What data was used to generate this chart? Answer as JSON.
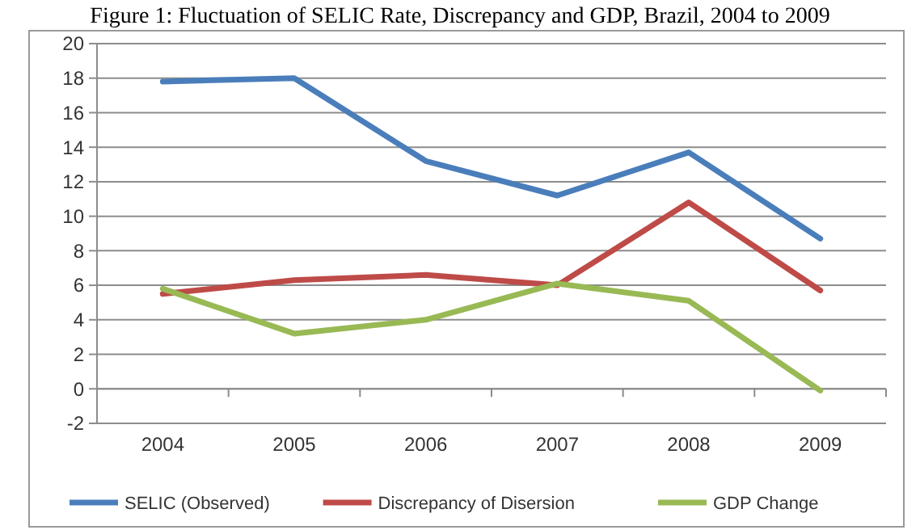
{
  "chart_data": {
    "type": "line",
    "title": "Figure 1: Fluctuation of SELIC Rate, Discrepancy and GDP, Brazil, 2004 to 2009",
    "categories": [
      "2004",
      "2005",
      "2006",
      "2007",
      "2008",
      "2009"
    ],
    "series": [
      {
        "name": "SELIC (Observed)",
        "color": "#4a7ebb",
        "values": [
          17.8,
          18.0,
          13.2,
          11.2,
          13.7,
          8.7
        ]
      },
      {
        "name": "Discrepancy of Disersion",
        "color": "#be4b48",
        "values": [
          5.5,
          6.3,
          6.6,
          6.0,
          10.8,
          5.7
        ]
      },
      {
        "name": "GDP Change",
        "color": "#98b954",
        "values": [
          5.8,
          3.2,
          4.0,
          6.1,
          5.1,
          -0.1
        ]
      }
    ],
    "ylim": [
      -2,
      20
    ],
    "yticks": [
      -2,
      0,
      2,
      4,
      6,
      8,
      10,
      12,
      14,
      16,
      18,
      20
    ],
    "grid": "y",
    "legend": "bottom",
    "marker": "none",
    "line_style": "solid"
  }
}
